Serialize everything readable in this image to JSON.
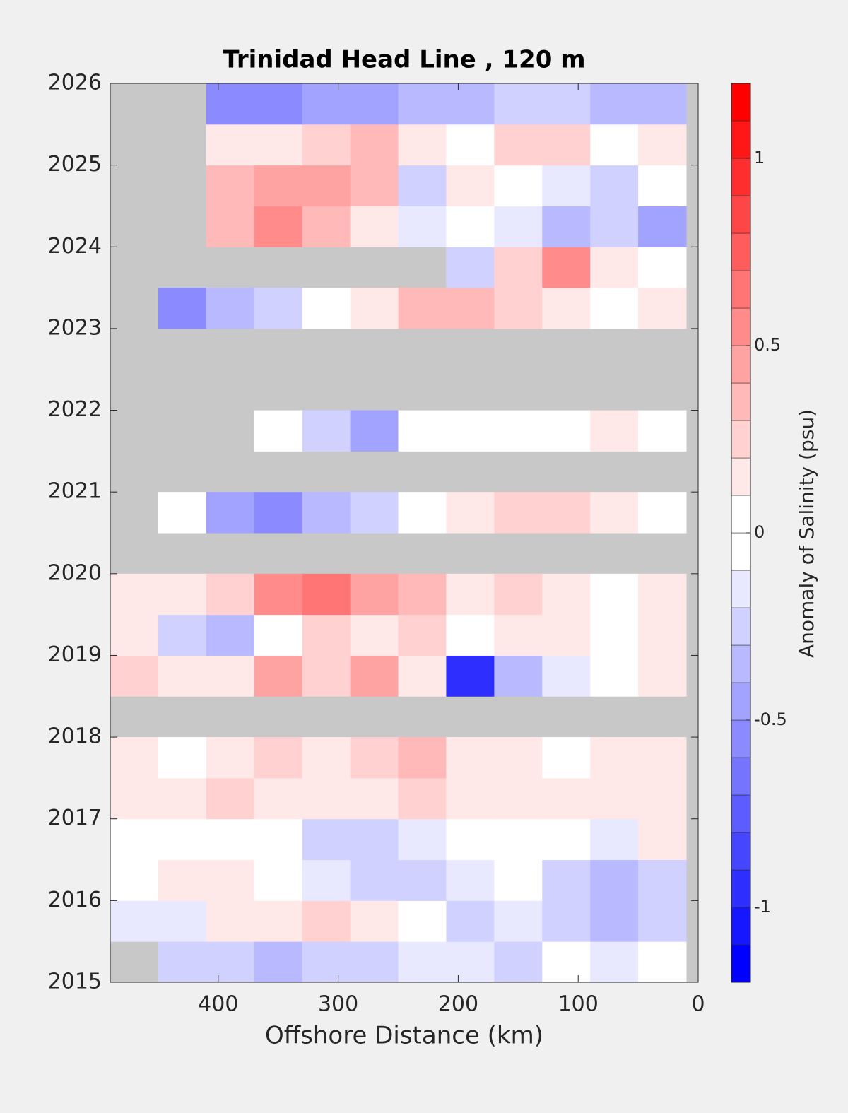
{
  "chart_data": {
    "type": "contour",
    "title": "Trinidad Head Line , 120 m",
    "x_label": "Offshore Distance (km)",
    "colorbar_label": "Anomaly of Salinity (psu)",
    "x": [
      470,
      430,
      390,
      350,
      310,
      270,
      230,
      190,
      150,
      110,
      70,
      30
    ],
    "y": [
      2015.25,
      2015.75,
      2016.25,
      2016.75,
      2017.25,
      2017.75,
      2018.25,
      2018.75,
      2019.25,
      2019.75,
      2020.25,
      2020.75,
      2021.25,
      2021.75,
      2022.25,
      2022.75,
      2023.25,
      2023.75,
      2024.25,
      2024.75,
      2025.25,
      2025.75
    ],
    "z": [
      [
        null,
        -0.2,
        -0.2,
        -0.3,
        -0.2,
        -0.2,
        -0.1,
        -0.1,
        -0.2,
        0,
        -0.1,
        0
      ],
      [
        -0.1,
        -0.1,
        0.1,
        0.1,
        0.2,
        0.1,
        0,
        -0.2,
        -0.1,
        -0.2,
        -0.3,
        -0.2
      ],
      [
        0,
        0.1,
        0.1,
        0,
        -0.1,
        -0.2,
        -0.2,
        -0.1,
        0,
        -0.2,
        -0.3,
        -0.2
      ],
      [
        0,
        0,
        0,
        0,
        -0.2,
        -0.2,
        -0.1,
        0,
        0,
        0,
        -0.1,
        0.1
      ],
      [
        0.1,
        0.1,
        0.2,
        0.1,
        0.1,
        0.1,
        0.2,
        0.1,
        0.1,
        0.1,
        0.1,
        0.1
      ],
      [
        0.1,
        0,
        0.1,
        0.2,
        0.1,
        0.2,
        0.3,
        0.1,
        0.1,
        0,
        0.1,
        0.1
      ],
      [
        null,
        null,
        null,
        null,
        null,
        null,
        null,
        null,
        null,
        null,
        null,
        null
      ],
      [
        0.2,
        0.1,
        0.1,
        0.4,
        0.2,
        0.4,
        0.1,
        -0.9,
        -0.3,
        -0.1,
        0,
        0.1
      ],
      [
        0.1,
        -0.2,
        -0.3,
        0,
        0.2,
        0.1,
        0.2,
        0,
        0.1,
        0.1,
        0,
        0.1
      ],
      [
        0.1,
        0.1,
        0.2,
        0.5,
        0.6,
        0.4,
        0.3,
        0.1,
        0.2,
        0.1,
        0,
        0.1
      ],
      [
        null,
        null,
        null,
        null,
        null,
        null,
        null,
        null,
        null,
        null,
        null,
        null
      ],
      [
        null,
        0,
        -0.4,
        -0.5,
        -0.3,
        -0.2,
        0,
        0.1,
        0.2,
        0.2,
        0.1,
        0
      ],
      [
        null,
        null,
        null,
        null,
        null,
        null,
        null,
        null,
        null,
        null,
        null,
        null
      ],
      [
        null,
        null,
        null,
        0,
        -0.2,
        -0.4,
        0,
        0,
        0,
        0,
        0.1,
        0
      ],
      [
        null,
        null,
        null,
        null,
        null,
        null,
        null,
        null,
        null,
        null,
        null,
        null
      ],
      [
        null,
        null,
        null,
        null,
        null,
        null,
        null,
        null,
        null,
        null,
        null,
        null
      ],
      [
        null,
        -0.5,
        -0.3,
        -0.2,
        0,
        0.1,
        0.3,
        0.3,
        0.2,
        0.1,
        0,
        0.1
      ],
      [
        null,
        null,
        null,
        null,
        null,
        null,
        null,
        -0.2,
        0.2,
        0.5,
        0.1,
        0
      ],
      [
        null,
        null,
        0.3,
        0.5,
        0.3,
        0.1,
        -0.1,
        0,
        -0.1,
        -0.3,
        -0.2,
        -0.4
      ],
      [
        null,
        null,
        0.3,
        0.4,
        0.4,
        0.3,
        -0.2,
        0.1,
        0,
        -0.1,
        -0.2,
        0
      ],
      [
        null,
        null,
        0.1,
        0.1,
        0.2,
        0.3,
        0.1,
        0,
        0.2,
        0.2,
        0,
        0.1
      ],
      [
        null,
        null,
        -0.5,
        -0.5,
        -0.4,
        -0.4,
        -0.3,
        -0.3,
        -0.2,
        -0.2,
        -0.3,
        -0.3
      ]
    ],
    "xlim": [
      490,
      0
    ],
    "xticks": [
      400,
      300,
      200,
      100,
      0
    ],
    "ylim": [
      2015,
      2026
    ],
    "yticks": [
      2015,
      2016,
      2017,
      2018,
      2019,
      2020,
      2021,
      2022,
      2023,
      2024,
      2025,
      2026
    ],
    "clim": [
      -1.2,
      1.2
    ],
    "cticks": [
      -1,
      -0.5,
      0,
      0.5,
      1
    ],
    "nan_color": "#c8c8c8"
  }
}
